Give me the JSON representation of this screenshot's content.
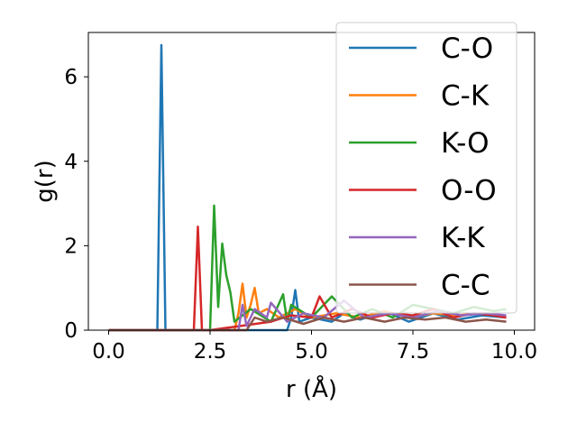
{
  "chart_data": {
    "type": "line",
    "title": "",
    "xlabel": "r (Å)",
    "ylabel": "g(r)",
    "xlim": [
      -0.5,
      10.5
    ],
    "ylim": [
      0,
      7.05
    ],
    "x_ticks": [
      0.0,
      2.5,
      5.0,
      7.5,
      10.0
    ],
    "x_tick_labels": [
      "0.0",
      "2.5",
      "5.0",
      "7.5",
      "10.0"
    ],
    "y_ticks": [
      0,
      2,
      4,
      6
    ],
    "y_tick_labels": [
      "0",
      "2",
      "4",
      "6"
    ],
    "grid": false,
    "legend_position": "right",
    "series": [
      {
        "name": "C-O",
        "color": "#1f77b4",
        "x": [
          0.0,
          1.2,
          1.3,
          1.4,
          1.5,
          4.4,
          4.5,
          4.6,
          4.7,
          5.0,
          5.5,
          5.8,
          6.2,
          6.8,
          7.4,
          8.0,
          8.6,
          9.2,
          9.8
        ],
        "y": [
          0.0,
          0.0,
          6.75,
          0.0,
          0.0,
          0.0,
          0.3,
          0.95,
          0.2,
          0.3,
          0.2,
          0.4,
          0.25,
          0.45,
          0.2,
          0.4,
          0.25,
          0.35,
          0.3
        ]
      },
      {
        "name": "C-K",
        "color": "#ff7f0e",
        "x": [
          0.0,
          3.1,
          3.2,
          3.3,
          3.4,
          3.5,
          3.6,
          3.7,
          3.9,
          4.2,
          4.6,
          5.0,
          5.6,
          6.2,
          6.8,
          7.4,
          8.0,
          8.6,
          9.2,
          9.8
        ],
        "y": [
          0.0,
          0.0,
          0.4,
          1.1,
          0.3,
          0.6,
          1.0,
          0.4,
          0.5,
          0.3,
          0.5,
          0.3,
          0.4,
          0.3,
          0.45,
          0.3,
          0.4,
          0.35,
          0.4,
          0.3
        ]
      },
      {
        "name": "K-O",
        "color": "#2ca02c",
        "x": [
          0.0,
          2.5,
          2.6,
          2.7,
          2.8,
          2.9,
          3.0,
          3.1,
          3.5,
          4.0,
          4.3,
          4.4,
          4.5,
          5.0,
          5.5,
          6.0,
          6.5,
          7.0,
          7.5,
          8.0,
          8.5,
          9.0,
          9.5,
          9.8
        ],
        "y": [
          0.0,
          0.0,
          2.95,
          0.55,
          2.05,
          1.3,
          0.9,
          0.2,
          0.5,
          0.2,
          0.85,
          0.2,
          0.6,
          0.3,
          0.8,
          0.3,
          0.5,
          0.3,
          0.6,
          0.5,
          0.4,
          0.55,
          0.45,
          0.5
        ]
      },
      {
        "name": "O-O",
        "color": "#d62728",
        "x": [
          0.0,
          2.1,
          2.2,
          2.3,
          2.5,
          4.0,
          4.5,
          5.0,
          5.2,
          5.5,
          6.0,
          6.5,
          7.0,
          7.5,
          8.0,
          8.5,
          9.0,
          9.5,
          9.8
        ],
        "y": [
          0.0,
          0.0,
          2.45,
          0.0,
          0.0,
          0.2,
          0.35,
          0.3,
          0.8,
          0.3,
          0.5,
          0.3,
          0.4,
          0.35,
          0.5,
          0.3,
          0.4,
          0.35,
          0.3
        ]
      },
      {
        "name": "K-K",
        "color": "#9467bd",
        "x": [
          0.0,
          3.2,
          3.3,
          3.4,
          3.6,
          3.9,
          4.0,
          4.4,
          4.8,
          5.3,
          5.8,
          6.3,
          6.9,
          7.5,
          8.1,
          8.7,
          9.3,
          9.8
        ],
        "y": [
          0.0,
          0.0,
          0.6,
          0.1,
          0.5,
          0.3,
          0.65,
          0.2,
          0.4,
          0.3,
          0.7,
          0.3,
          0.4,
          0.3,
          0.45,
          0.35,
          0.4,
          0.35
        ]
      },
      {
        "name": "C-C",
        "color": "#8c564b",
        "x": [
          0.0,
          3.4,
          3.6,
          3.9,
          4.3,
          4.8,
          5.3,
          5.8,
          6.3,
          6.8,
          7.3,
          7.8,
          8.3,
          8.8,
          9.3,
          9.8
        ],
        "y": [
          0.0,
          0.0,
          0.3,
          0.2,
          0.3,
          0.15,
          0.3,
          0.2,
          0.3,
          0.2,
          0.3,
          0.25,
          0.3,
          0.2,
          0.25,
          0.2
        ]
      }
    ]
  }
}
